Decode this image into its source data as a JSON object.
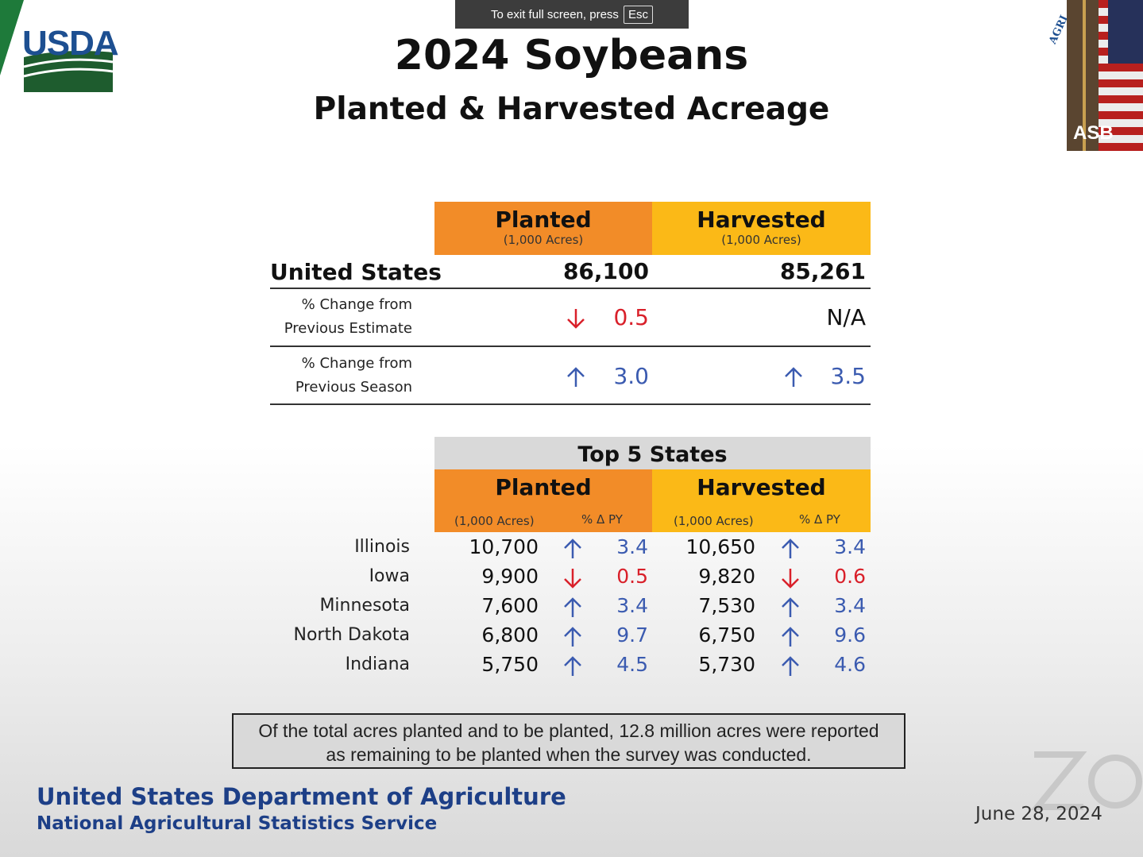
{
  "fullscreen_notice": {
    "text": "To exit full screen, press",
    "key": "Esc"
  },
  "logo": {
    "text": "USDA"
  },
  "slide": {
    "title": "2024 Soybeans",
    "subtitle": "Planted & Harvested Acreage",
    "summary": {
      "col_planted": "Planted",
      "col_harvested": "Harvested",
      "unit": "(1,000 Acres)",
      "us_label": "United States",
      "us_planted": "86,100",
      "us_harvested": "85,261",
      "row1_label_line1": "% Change from",
      "row1_label_line2": "Previous Estimate",
      "row1_planted_dir": "down",
      "row1_planted": "0.5",
      "row1_harvested": "N/A",
      "row2_label_line1": "% Change from",
      "row2_label_line2": "Previous Season",
      "row2_planted_dir": "up",
      "row2_planted": "3.0",
      "row2_harvested_dir": "up",
      "row2_harvested": "3.5"
    },
    "top5": {
      "title": "Top 5 States",
      "col_planted": "Planted",
      "col_harvested": "Harvested",
      "unit": "(1,000 Acres)",
      "pct_label": "% Δ PY",
      "rows": [
        {
          "state": "Illinois",
          "planted": "10,700",
          "p_dir": "up",
          "p_pct": "3.4",
          "harvested": "10,650",
          "h_dir": "up",
          "h_pct": "3.4"
        },
        {
          "state": "Iowa",
          "planted": "9,900",
          "p_dir": "down",
          "p_pct": "0.5",
          "harvested": "9,820",
          "h_dir": "down",
          "h_pct": "0.6"
        },
        {
          "state": "Minnesota",
          "planted": "7,600",
          "p_dir": "up",
          "p_pct": "3.4",
          "harvested": "7,530",
          "h_dir": "up",
          "h_pct": "3.4"
        },
        {
          "state": "North Dakota",
          "planted": "6,800",
          "p_dir": "up",
          "p_pct": "9.7",
          "harvested": "6,750",
          "h_dir": "up",
          "h_pct": "9.6"
        },
        {
          "state": "Indiana",
          "planted": "5,750",
          "p_dir": "up",
          "p_pct": "4.5",
          "harvested": "5,730",
          "h_dir": "up",
          "h_pct": "4.6"
        }
      ]
    },
    "note_line1": "Of the total acres planted and to be planted, 12.8 million acres were reported",
    "note_line2": "as remaining to be planted when the survey was conducted.",
    "footer_dept": "United States Department of Agriculture",
    "footer_agency": "National Agricultural Statistics Service",
    "date": "June 28, 2024"
  },
  "video_tile": {
    "label": "ASB"
  },
  "seal_text": "AGRI",
  "colors": {
    "planted": "#f28c28",
    "harvested": "#fbb917",
    "up": "#3b5bb0",
    "down": "#d9202a",
    "brand": "#1d3f87"
  }
}
